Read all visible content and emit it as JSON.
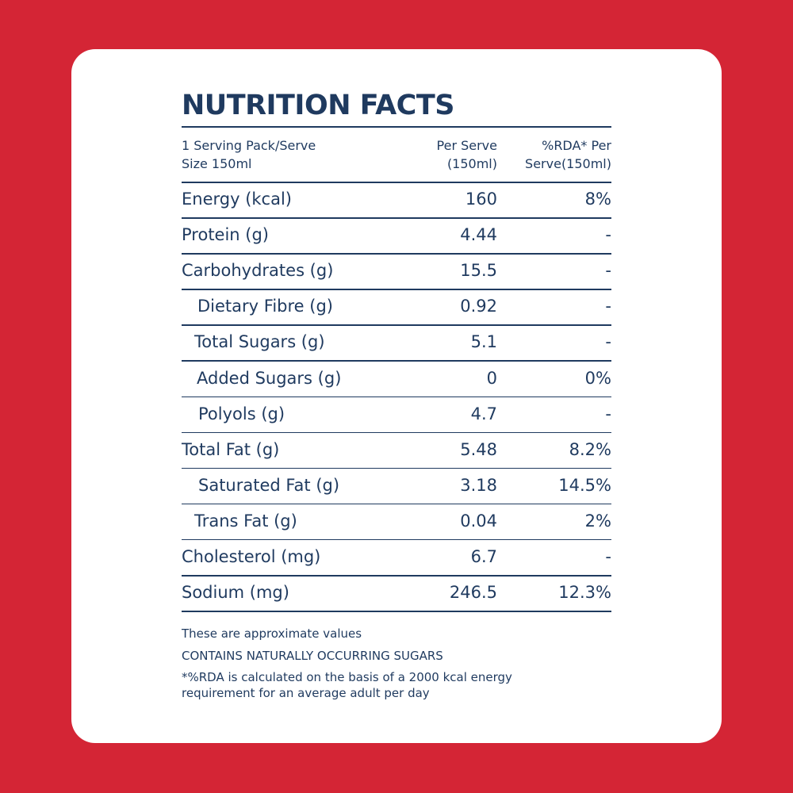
{
  "header": {
    "title": "NUTRITION FACTS"
  },
  "table": {
    "columns": [
      [
        "1 Serving Pack/Serve",
        "Size 150ml"
      ],
      [
        "Per Serve",
        "(150ml)"
      ],
      [
        "%RDA* Per",
        "Serve(150ml)"
      ]
    ],
    "rows": [
      [
        "Energy (kcal)",
        "160",
        "8%"
      ],
      [
        "Protein (g)",
        "4.44",
        "-"
      ],
      [
        "Carbohydrates (g)",
        "15.5",
        "-"
      ],
      [
        "Dietary Fibre (g)",
        "0.92",
        "-"
      ],
      [
        "Total Sugars (g)",
        "5.1",
        "-"
      ],
      [
        "Added Sugars (g)",
        "0",
        "0%"
      ],
      [
        "Polyols (g)",
        "4.7",
        "-"
      ],
      [
        "Total Fat (g)",
        "5.48",
        "8.2%"
      ],
      [
        "Saturated Fat (g)",
        "3.18",
        "14.5%"
      ],
      [
        "Trans Fat (g)",
        "0.04",
        "2%"
      ],
      [
        "Cholesterol (mg)",
        "6.7",
        "-"
      ],
      [
        "Sodium (mg)",
        "246.5",
        "12.3%"
      ]
    ]
  },
  "footnotes": [
    "These are approximate values",
    "CONTAINS NATURALLY OCCURRING SUGARS",
    "*%RDA is calculated on the basis of a 2000 kcal energy",
    "requirement for an average adult per day"
  ]
}
